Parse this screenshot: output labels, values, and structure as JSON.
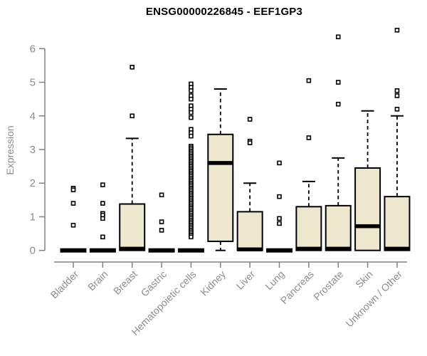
{
  "chart_data": {
    "type": "boxplot",
    "title": "ENSG00000226845 - EEF1GP3",
    "ylabel": "Expression",
    "xlabel": "",
    "ylim": [
      0,
      6.6
    ],
    "yticks": [
      0,
      1,
      2,
      3,
      4,
      5,
      6
    ],
    "grid": false,
    "legend": "none",
    "colors": {
      "box_fill": "#ede8cd",
      "box_stroke": "#000000",
      "axis_line": "#808080",
      "tick_label": "#8c8c8c",
      "title": "#000000"
    },
    "categories": [
      "Bladder",
      "Brain",
      "Breast",
      "Gastric",
      "Hematopoietic cells",
      "Kidney",
      "Liver",
      "Lung",
      "Pancreas",
      "Prostate",
      "Skin",
      "Unknown / Other"
    ],
    "series": [
      {
        "category": "Bladder",
        "q1": 0,
        "median": 0,
        "q3": 0,
        "whisker_low": 0,
        "whisker_high": 0,
        "outliers": [
          1.85,
          1.8,
          1.4,
          0.75
        ]
      },
      {
        "category": "Brain",
        "q1": 0,
        "median": 0,
        "q3": 0,
        "whisker_low": 0,
        "whisker_high": 0,
        "outliers": [
          1.95,
          1.4,
          1.1,
          1.05,
          0.95,
          0.4
        ]
      },
      {
        "category": "Breast",
        "q1": 0,
        "median": 0.05,
        "q3": 1.38,
        "whisker_low": 0,
        "whisker_high": 3.33,
        "outliers": [
          5.45,
          4.0
        ]
      },
      {
        "category": "Gastric",
        "q1": 0,
        "median": 0,
        "q3": 0,
        "whisker_low": 0,
        "whisker_high": 0,
        "outliers": [
          1.65,
          0.85,
          0.6
        ]
      },
      {
        "category": "Hematopoietic cells",
        "q1": 0,
        "median": 0,
        "q3": 0.05,
        "whisker_low": 0,
        "whisker_high": 0.05,
        "outliers": [
          4.95,
          4.85,
          4.75,
          4.6,
          4.5,
          4.3,
          4.2,
          4.1,
          3.95,
          3.6,
          3.5,
          3.4,
          3.1,
          3.05,
          3.0,
          2.95,
          2.9,
          2.85,
          2.8,
          2.75,
          2.7,
          2.65,
          2.6,
          2.55,
          2.5,
          2.45,
          2.4,
          2.35,
          2.3,
          2.25,
          2.2,
          2.15,
          2.1,
          2.05,
          2.0,
          1.95,
          1.9,
          1.85,
          1.8,
          1.75,
          1.7,
          1.65,
          1.6,
          1.55,
          1.5,
          1.45,
          1.4,
          1.35,
          1.3,
          1.25,
          1.2,
          1.15,
          1.1,
          1.05,
          1.0,
          0.95,
          0.9,
          0.85,
          0.8,
          0.75,
          0.7,
          0.65,
          0.6,
          0.55,
          0.5,
          0.45,
          0.4
        ]
      },
      {
        "category": "Kidney",
        "q1": 0.27,
        "median": 2.6,
        "q3": 3.45,
        "whisker_low": 0,
        "whisker_high": 4.8,
        "outliers": []
      },
      {
        "category": "Liver",
        "q1": 0,
        "median": 0.03,
        "q3": 1.15,
        "whisker_low": 0,
        "whisker_high": 2.0,
        "outliers": [
          3.9,
          3.25,
          3.2
        ]
      },
      {
        "category": "Lung",
        "q1": 0,
        "median": 0,
        "q3": 0,
        "whisker_low": 0,
        "whisker_high": 0,
        "outliers": [
          2.6,
          1.6,
          0.95,
          0.8
        ]
      },
      {
        "category": "Pancreas",
        "q1": 0,
        "median": 0.05,
        "q3": 1.3,
        "whisker_low": 0,
        "whisker_high": 2.05,
        "outliers": [
          5.05,
          3.35
        ]
      },
      {
        "category": "Prostate",
        "q1": 0,
        "median": 0.05,
        "q3": 1.33,
        "whisker_low": 0,
        "whisker_high": 2.75,
        "outliers": [
          6.35,
          5.0,
          4.35
        ]
      },
      {
        "category": "Skin",
        "q1": 0,
        "median": 0.72,
        "q3": 2.45,
        "whisker_low": 0,
        "whisker_high": 4.15,
        "outliers": []
      },
      {
        "category": "Unknown / Other",
        "q1": 0,
        "median": 0.05,
        "q3": 1.6,
        "whisker_low": 0,
        "whisker_high": 4.0,
        "outliers": [
          6.55,
          4.75,
          4.6,
          4.2
        ]
      }
    ]
  }
}
